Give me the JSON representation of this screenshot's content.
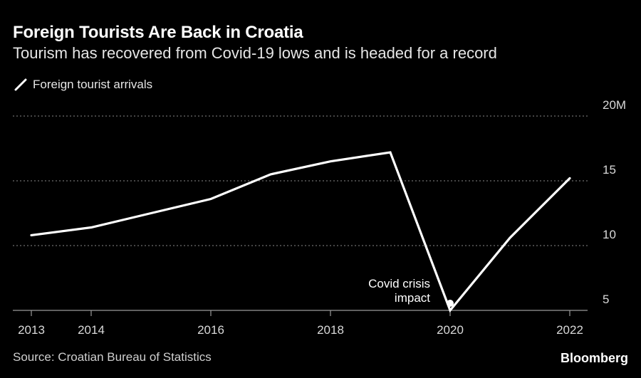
{
  "chart_data": {
    "type": "line",
    "title": "Foreign Tourists Are Back in Croatia",
    "subtitle": "Tourism has recovered from Covid-19 lows and is headed for a record",
    "series": [
      {
        "name": "Foreign tourist arrivals",
        "color": "#ffffff",
        "x": [
          2013,
          2014,
          2015,
          2016,
          2017,
          2018,
          2019,
          2020,
          2021,
          2022
        ],
        "values": [
          10.8,
          11.4,
          12.5,
          13.6,
          15.5,
          16.5,
          17.2,
          5.0,
          10.6,
          15.2
        ]
      }
    ],
    "x_ticks": [
      2013,
      2014,
      2016,
      2018,
      2020,
      2022
    ],
    "y_ticks": [
      {
        "value": 20,
        "label": "20M"
      },
      {
        "value": 15,
        "label": "15"
      },
      {
        "value": 10,
        "label": "10"
      },
      {
        "value": 5,
        "label": "5"
      }
    ],
    "ylim": [
      5,
      20
    ],
    "xlim": [
      2013,
      2022
    ],
    "grid": "horizontal dotted",
    "legend_position": "top-left",
    "annotation": {
      "x": 2020,
      "y": 5.0,
      "line1": "Covid crisis",
      "line2": "impact"
    }
  },
  "footer": {
    "source": "Source: Croatian Bureau of Statistics",
    "brand": "Bloomberg"
  }
}
